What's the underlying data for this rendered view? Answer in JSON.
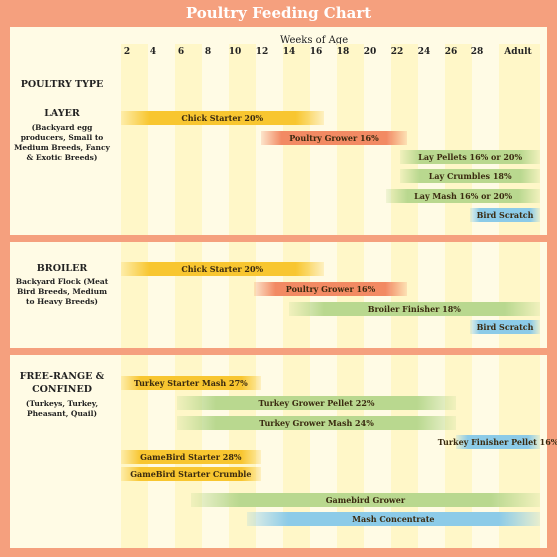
{
  "chart_data": {
    "type": "gantt",
    "title": "Poultry Feeding Chart",
    "xlabel": "Weeks of Age",
    "x_ticks": [
      "2",
      "4",
      "6",
      "8",
      "10",
      "12",
      "14",
      "16",
      "18",
      "20",
      "22",
      "24",
      "26",
      "28",
      "Adult"
    ],
    "row_header": "POULTRY TYPE",
    "groups": [
      {
        "name": "LAYER",
        "description": "(Backyard egg producers, Small to Medium Breeds, Fancy & Exotic Breeds)",
        "bars": [
          {
            "label": "Chick Starter 20%",
            "start": 0,
            "end": 14.5,
            "color": "#f8c630"
          },
          {
            "label": "Poultry Grower 16%",
            "start": 10,
            "end": 20.5,
            "color": "#f28a63"
          },
          {
            "label": "Lay Pellets 16% or 20%",
            "start": 20,
            "end": 30,
            "color": "#b9d88f"
          },
          {
            "label": "Lay Crumbles 18%",
            "start": 20,
            "end": 30,
            "color": "#b9d88f"
          },
          {
            "label": "Lay Mash 16% or 20%",
            "start": 19,
            "end": 30,
            "color": "#b9d88f"
          },
          {
            "label": "Bird Scratch",
            "start": 25,
            "end": 30,
            "color": "#8ccbe8"
          }
        ]
      },
      {
        "name": "BROILER",
        "description": "Backyard Flock (Meat Bird Breeds, Medium to Heavy Breeds)",
        "bars": [
          {
            "label": "Chick Starter 20%",
            "start": 0,
            "end": 14.5,
            "color": "#f8c630"
          },
          {
            "label": "Poultry Grower 16%",
            "start": 9.5,
            "end": 20.5,
            "color": "#f28a63"
          },
          {
            "label": "Broiler Finisher 18%",
            "start": 12,
            "end": 30,
            "color": "#b9d88f"
          },
          {
            "label": "Bird Scratch",
            "start": 25,
            "end": 30,
            "color": "#8ccbe8"
          }
        ]
      },
      {
        "name": "FREE-RANGE & CONFINED",
        "description": "(Turkeys, Turkey, Pheasant, Quail)",
        "bars": [
          {
            "label": "Turkey Starter Mash 27%",
            "start": 0,
            "end": 10,
            "color": "#f8c630"
          },
          {
            "label": "Turkey Grower Pellet 22%",
            "start": 4,
            "end": 24,
            "color": "#b9d88f"
          },
          {
            "label": "Turkey Grower  Mash 24%",
            "start": 4,
            "end": 24,
            "color": "#b9d88f"
          },
          {
            "label": "Turkey Finisher Pellet 16%",
            "start": 24,
            "end": 30,
            "color": "#8ccbe8"
          },
          {
            "label": "GameBird Starter 28%",
            "start": 0,
            "end": 10,
            "color": "#f8c630"
          },
          {
            "label": "GameBird Starter Crumble",
            "start": 0,
            "end": 10,
            "color": "#f8c630"
          },
          {
            "label": "Gamebird Grower",
            "start": 5,
            "end": 30,
            "color": "#b9d88f"
          },
          {
            "label": "Mash Concentrate",
            "start": 9,
            "end": 30,
            "color": "#8ccbe8"
          }
        ]
      }
    ]
  }
}
